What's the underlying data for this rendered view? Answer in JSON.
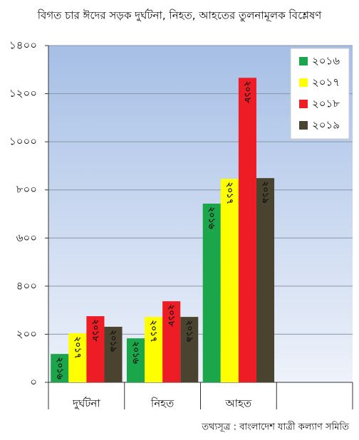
{
  "chart_data": {
    "type": "bar",
    "title": "বিগত চার ঈদের সড়ক দুর্ঘটনা, নিহত, আহতের তুলনামূলক বিশ্লেষণ",
    "source": "তথ্যসূত্র : বাংলাদেশ যাত্রী কল্যাণ সমিতি",
    "categories": [
      "দুর্ঘটনা",
      "নিহত",
      "আহত",
      null
    ],
    "series": [
      {
        "name": "২০১৬",
        "color": "#1ba64b",
        "values": [
          118,
          183,
          743,
          null
        ]
      },
      {
        "name": "২০১৭",
        "color": "#ffff00",
        "values": [
          204,
          272,
          846,
          null
        ]
      },
      {
        "name": "২০১৮",
        "color": "#ee1c24",
        "values": [
          275,
          337,
          1266,
          null
        ]
      },
      {
        "name": "২০১৯",
        "color": "#4a4330",
        "values": [
          231,
          272,
          849,
          null
        ]
      }
    ],
    "ylim": [
      0,
      1400
    ],
    "yticks": [
      {
        "value": 0,
        "label": "০"
      },
      {
        "value": 200,
        "label": "২০০"
      },
      {
        "value": 400,
        "label": "৪০০"
      },
      {
        "value": 600,
        "label": "৬০০"
      },
      {
        "value": 800,
        "label": "৮০০"
      },
      {
        "value": 1000,
        "label": "১০০০"
      },
      {
        "value": 1200,
        "label": "১২০০"
      },
      {
        "value": 1400,
        "label": "১৪০০"
      }
    ],
    "grid": true,
    "legend": "top-right"
  }
}
